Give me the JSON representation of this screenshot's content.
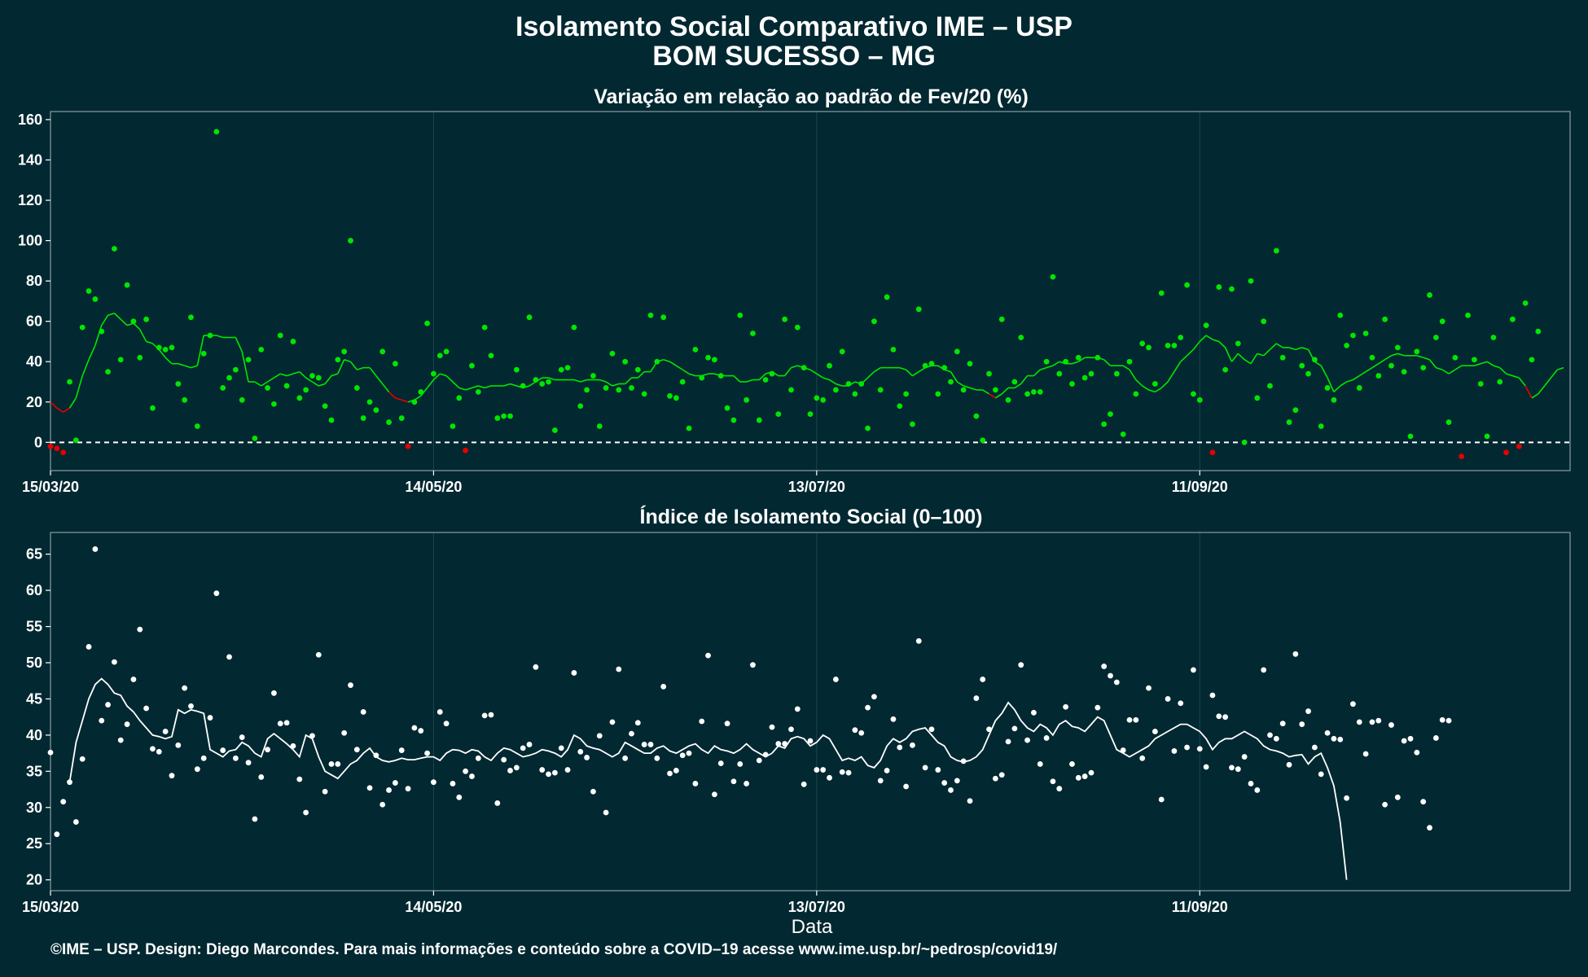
{
  "title": "Isolamento Social Comparativo IME – USP",
  "subtitle": "BOM SUCESSO – MG",
  "footer": "©IME – USP. Design: Diego Marcondes. Para mais informações e conteúdo sobre a COVID–19 acesse www.ime.usp.br/~pedrosp/covid19/",
  "colors": {
    "background": "#022831",
    "positive": "#00e600",
    "negative": "#e60000",
    "index": "#ffffff",
    "frame": "#8a9ea4"
  },
  "chart_data": [
    {
      "type": "scatter",
      "title": "Variação em relação ao padrão de Fev/20 (%)",
      "xlabel": "",
      "ylabel": "",
      "ylim": [
        -14,
        164
      ],
      "yticks": [
        0,
        20,
        40,
        60,
        80,
        100,
        120,
        140,
        160
      ],
      "xticks": [
        "15/03/20",
        "14/05/20",
        "13/07/20",
        "11/09/20"
      ],
      "x_range_days": [
        0,
        238
      ],
      "reference_line": 0,
      "grid": true,
      "series": [
        {
          "values": [
            -2,
            -3,
            -5,
            30,
            1,
            57,
            75,
            71,
            55,
            35,
            96,
            41,
            78,
            60,
            42,
            61,
            17,
            47,
            46,
            47,
            29,
            21,
            62,
            8,
            44,
            53,
            154,
            27,
            32,
            36,
            21,
            41,
            2,
            46,
            27,
            19,
            53,
            28,
            50,
            22,
            26,
            33,
            32,
            18,
            11,
            41,
            45,
            100,
            27,
            12,
            20,
            16,
            45,
            10,
            39,
            12,
            -2,
            20,
            25,
            59,
            34,
            43,
            45,
            8,
            22,
            -4,
            38,
            25,
            57,
            43,
            12,
            13,
            13,
            36,
            28,
            62,
            31,
            29,
            30,
            6,
            36,
            37,
            57,
            18,
            26,
            33,
            8,
            27,
            44,
            26,
            40,
            27,
            36,
            24,
            63,
            40,
            62,
            23,
            22,
            30,
            7,
            46,
            32,
            42,
            41,
            33,
            17,
            11,
            63,
            21,
            54,
            11,
            31,
            34,
            14,
            61,
            26,
            57,
            37,
            14,
            22,
            21,
            38,
            26,
            45,
            29,
            24,
            29,
            7,
            60,
            26,
            72,
            46,
            18,
            24,
            9,
            66,
            38,
            39,
            24,
            37,
            30,
            45,
            26,
            39,
            13,
            1,
            34,
            26,
            61,
            21,
            30,
            52,
            24,
            25,
            25,
            40,
            82,
            34,
            40,
            29,
            42,
            32,
            34,
            42,
            9,
            14,
            34,
            4,
            40,
            24,
            49,
            47,
            29,
            74,
            48,
            48,
            52,
            78,
            24,
            21,
            58,
            -5,
            77,
            36,
            76,
            49,
            0,
            80,
            22,
            60,
            28,
            95,
            42,
            10,
            16,
            38,
            34,
            41,
            8,
            27,
            21,
            63,
            48,
            53,
            27,
            54,
            42,
            33,
            61,
            38,
            47,
            35,
            3,
            45,
            37,
            73,
            52,
            60,
            10,
            42,
            -7,
            63,
            41,
            29,
            3,
            52,
            30,
            -5,
            61,
            -2,
            69,
            41,
            55
          ]
        },
        {
          "values": [
            20,
            17,
            15,
            17,
            22,
            33,
            41,
            48,
            58,
            63,
            64,
            61,
            58,
            59,
            56,
            50,
            49,
            46,
            42,
            39,
            39,
            38,
            37,
            38,
            53,
            53,
            53,
            52,
            52,
            52,
            45,
            30,
            30,
            28,
            30,
            32,
            34,
            33,
            34,
            35,
            32,
            30,
            28,
            29,
            33,
            34,
            41,
            40,
            36,
            37,
            37,
            33,
            29,
            25,
            22,
            21,
            20,
            21,
            23,
            27,
            31,
            34,
            33,
            30,
            27,
            26,
            27,
            28,
            27,
            28,
            28,
            28,
            29,
            28,
            27,
            28,
            30,
            32,
            32,
            31,
            31,
            31,
            31,
            30,
            31,
            31,
            31,
            30,
            28,
            29,
            29,
            32,
            32,
            35,
            35,
            40,
            41,
            40,
            38,
            36,
            34,
            33,
            33,
            34,
            34,
            33,
            33,
            33,
            30,
            30,
            31,
            31,
            34,
            35,
            33,
            33,
            37,
            38,
            37,
            36,
            34,
            32,
            31,
            29,
            28,
            28,
            30,
            29,
            32,
            35,
            37,
            37,
            37,
            37,
            36,
            33,
            35,
            37,
            38,
            38,
            36,
            35,
            30,
            28,
            27,
            26,
            26,
            24,
            22,
            24,
            27,
            27,
            29,
            33,
            33,
            36,
            37,
            38,
            40,
            39,
            39,
            40,
            42,
            42,
            42,
            41,
            38,
            38,
            38,
            36,
            31,
            28,
            26,
            25,
            27,
            30,
            35,
            40,
            43,
            46,
            50,
            53,
            51,
            50,
            47,
            40,
            44,
            41,
            39,
            44,
            43,
            46,
            49,
            47,
            47,
            46,
            47,
            46,
            40,
            38,
            32,
            25,
            28,
            30,
            31,
            33,
            35,
            37,
            39,
            41,
            43,
            44,
            43,
            43,
            43,
            42,
            41,
            37,
            36,
            34,
            36,
            38,
            38,
            38,
            39,
            40,
            38,
            37,
            34,
            33,
            32,
            28,
            22,
            24,
            28,
            32,
            36,
            37
          ]
        }
      ]
    },
    {
      "type": "scatter",
      "title": "Índice de Isolamento Social (0–100)",
      "xlabel": "Data",
      "ylabel": "",
      "ylim": [
        18.5,
        68
      ],
      "yticks": [
        20,
        25,
        30,
        35,
        40,
        45,
        50,
        55,
        60,
        65
      ],
      "xticks": [
        "15/03/20",
        "14/05/20",
        "13/07/20",
        "11/09/20"
      ],
      "x_range_days": [
        0,
        238
      ],
      "grid": true,
      "series": [
        {
          "values": [
            37.6,
            26.3,
            30.8,
            33.5,
            28.0,
            36.7,
            52.2,
            65.7,
            42.0,
            44.2,
            50.1,
            39.3,
            41.5,
            47.7,
            54.6,
            43.7,
            38.1,
            37.7,
            40.5,
            34.4,
            38.6,
            46.5,
            44.0,
            35.3,
            36.8,
            42.4,
            59.6,
            37.9,
            50.8,
            36.8,
            39.7,
            36.2,
            28.4,
            34.2,
            38.0,
            45.8,
            41.6,
            41.7,
            38.5,
            33.9,
            29.3,
            39.9,
            51.1,
            32.2,
            36.0,
            36.0,
            40.3,
            46.9,
            38.0,
            43.2,
            32.7,
            37.2,
            30.4,
            32.4,
            33.4,
            37.9,
            32.6,
            41.0,
            40.6,
            37.5,
            33.5,
            43.2,
            41.6,
            33.3,
            31.4,
            35.0,
            34.3,
            36.8,
            42.7,
            42.8,
            30.6,
            36.6,
            35.1,
            35.5,
            38.2,
            38.7,
            49.4,
            35.2,
            34.6,
            34.8,
            38.2,
            35.2,
            48.6,
            37.7,
            36.9,
            32.2,
            39.9,
            29.3,
            41.8,
            49.1,
            36.8,
            40.2,
            41.7,
            38.7,
            38.7,
            36.8,
            46.7,
            34.7,
            35.1,
            37.2,
            37.5,
            33.3,
            41.9,
            51.0,
            31.8,
            36.1,
            41.6,
            33.6,
            36.0,
            33.3,
            49.7,
            36.5,
            37.3,
            41.1,
            38.8,
            38.8,
            40.8,
            43.6,
            33.2,
            39.2,
            35.2,
            35.2,
            34.1,
            47.7,
            34.9,
            34.8,
            40.7,
            40.3,
            43.8,
            45.3,
            33.7,
            35.1,
            42.2,
            38.3,
            32.9,
            38.6,
            53.0,
            35.5,
            40.8,
            35.2,
            33.4,
            32.4,
            33.7,
            36.4,
            30.9,
            45.1,
            47.7,
            40.8,
            34.0,
            34.5,
            39.1,
            40.9,
            49.7,
            39.3,
            43.1,
            36.0,
            39.6,
            33.6,
            32.6,
            43.9,
            36.0,
            34.1,
            34.3,
            34.8,
            43.8,
            49.5,
            48.2,
            47.3,
            37.9,
            42.1,
            42.1,
            36.8,
            46.5,
            40.5,
            31.1,
            45.0,
            37.8,
            44.4,
            38.3,
            49.0,
            38.1,
            35.6,
            45.5,
            42.6,
            42.5,
            35.5,
            35.3,
            37.0,
            33.3,
            32.4,
            49.0,
            40.0,
            39.5,
            41.6,
            35.9,
            51.2,
            41.5,
            43.3,
            38.3,
            34.6,
            40.3,
            39.5,
            39.4,
            31.3,
            44.3,
            41.8,
            37.4,
            41.8,
            42.0,
            30.4,
            41.4,
            31.4,
            39.2,
            39.5,
            37.6,
            30.8,
            27.2,
            39.6,
            42.1,
            42.0
          ]
        },
        {
          "values": [
            null,
            null,
            null,
            33.5,
            39.0,
            42.0,
            45.0,
            47.0,
            47.8,
            47.0,
            45.8,
            45.5,
            44.0,
            43.2,
            42.0,
            41.0,
            40.0,
            39.8,
            39.5,
            39.8,
            43.5,
            43.0,
            43.5,
            43.3,
            43.0,
            38.0,
            37.5,
            37.0,
            37.8,
            38.0,
            39.0,
            38.5,
            37.5,
            37.0,
            39.5,
            40.2,
            39.5,
            38.8,
            38.0,
            37.0,
            40.0,
            39.5,
            37.0,
            35.0,
            34.5,
            34.0,
            35.0,
            36.0,
            36.5,
            37.5,
            38.2,
            37.0,
            36.5,
            36.3,
            36.5,
            36.8,
            36.6,
            36.6,
            36.8,
            37.0,
            37.0,
            36.5,
            37.5,
            38.0,
            37.9,
            37.5,
            38.0,
            37.8,
            37.0,
            36.5,
            37.5,
            38.2,
            38.0,
            37.5,
            37.0,
            37.2,
            37.5,
            38.0,
            37.8,
            37.5,
            37.0,
            38.0,
            40.0,
            39.5,
            38.5,
            38.2,
            38.0,
            37.5,
            37.0,
            37.5,
            39.0,
            38.5,
            38.0,
            37.5,
            37.5,
            38.2,
            38.5,
            37.8,
            37.5,
            38.0,
            38.5,
            38.8,
            38.0,
            37.5,
            38.5,
            38.0,
            37.8,
            37.5,
            38.0,
            38.8,
            38.0,
            37.5,
            37.0,
            37.5,
            38.5,
            38.2,
            39.5,
            39.8,
            39.5,
            38.5,
            39.0,
            40.0,
            39.5,
            38.0,
            36.5,
            36.8,
            36.5,
            37.0,
            35.8,
            35.5,
            36.5,
            38.5,
            39.5,
            39.0,
            39.5,
            40.5,
            40.8,
            41.0,
            40.0,
            39.0,
            38.5,
            37.0,
            36.5,
            36.3,
            36.5,
            37.0,
            38.0,
            40.0,
            42.0,
            43.0,
            44.5,
            43.5,
            42.0,
            41.0,
            40.5,
            41.5,
            41.0,
            40.0,
            41.5,
            42.0,
            41.2,
            41.0,
            40.5,
            41.5,
            42.5,
            42.0,
            40.0,
            38.0,
            37.5,
            37.0,
            37.5,
            38.0,
            38.5,
            39.5,
            40.0,
            40.5,
            41.0,
            41.5,
            41.5,
            41.0,
            40.5,
            39.5,
            38.0,
            39.0,
            39.5,
            39.5,
            40.0,
            40.5,
            40.0,
            39.5,
            38.5,
            38.0,
            37.8,
            37.5,
            37.0,
            37.2,
            37.3,
            36.0,
            37.0,
            37.5,
            35.5,
            33.0,
            28.0,
            20.0
          ]
        }
      ]
    }
  ]
}
